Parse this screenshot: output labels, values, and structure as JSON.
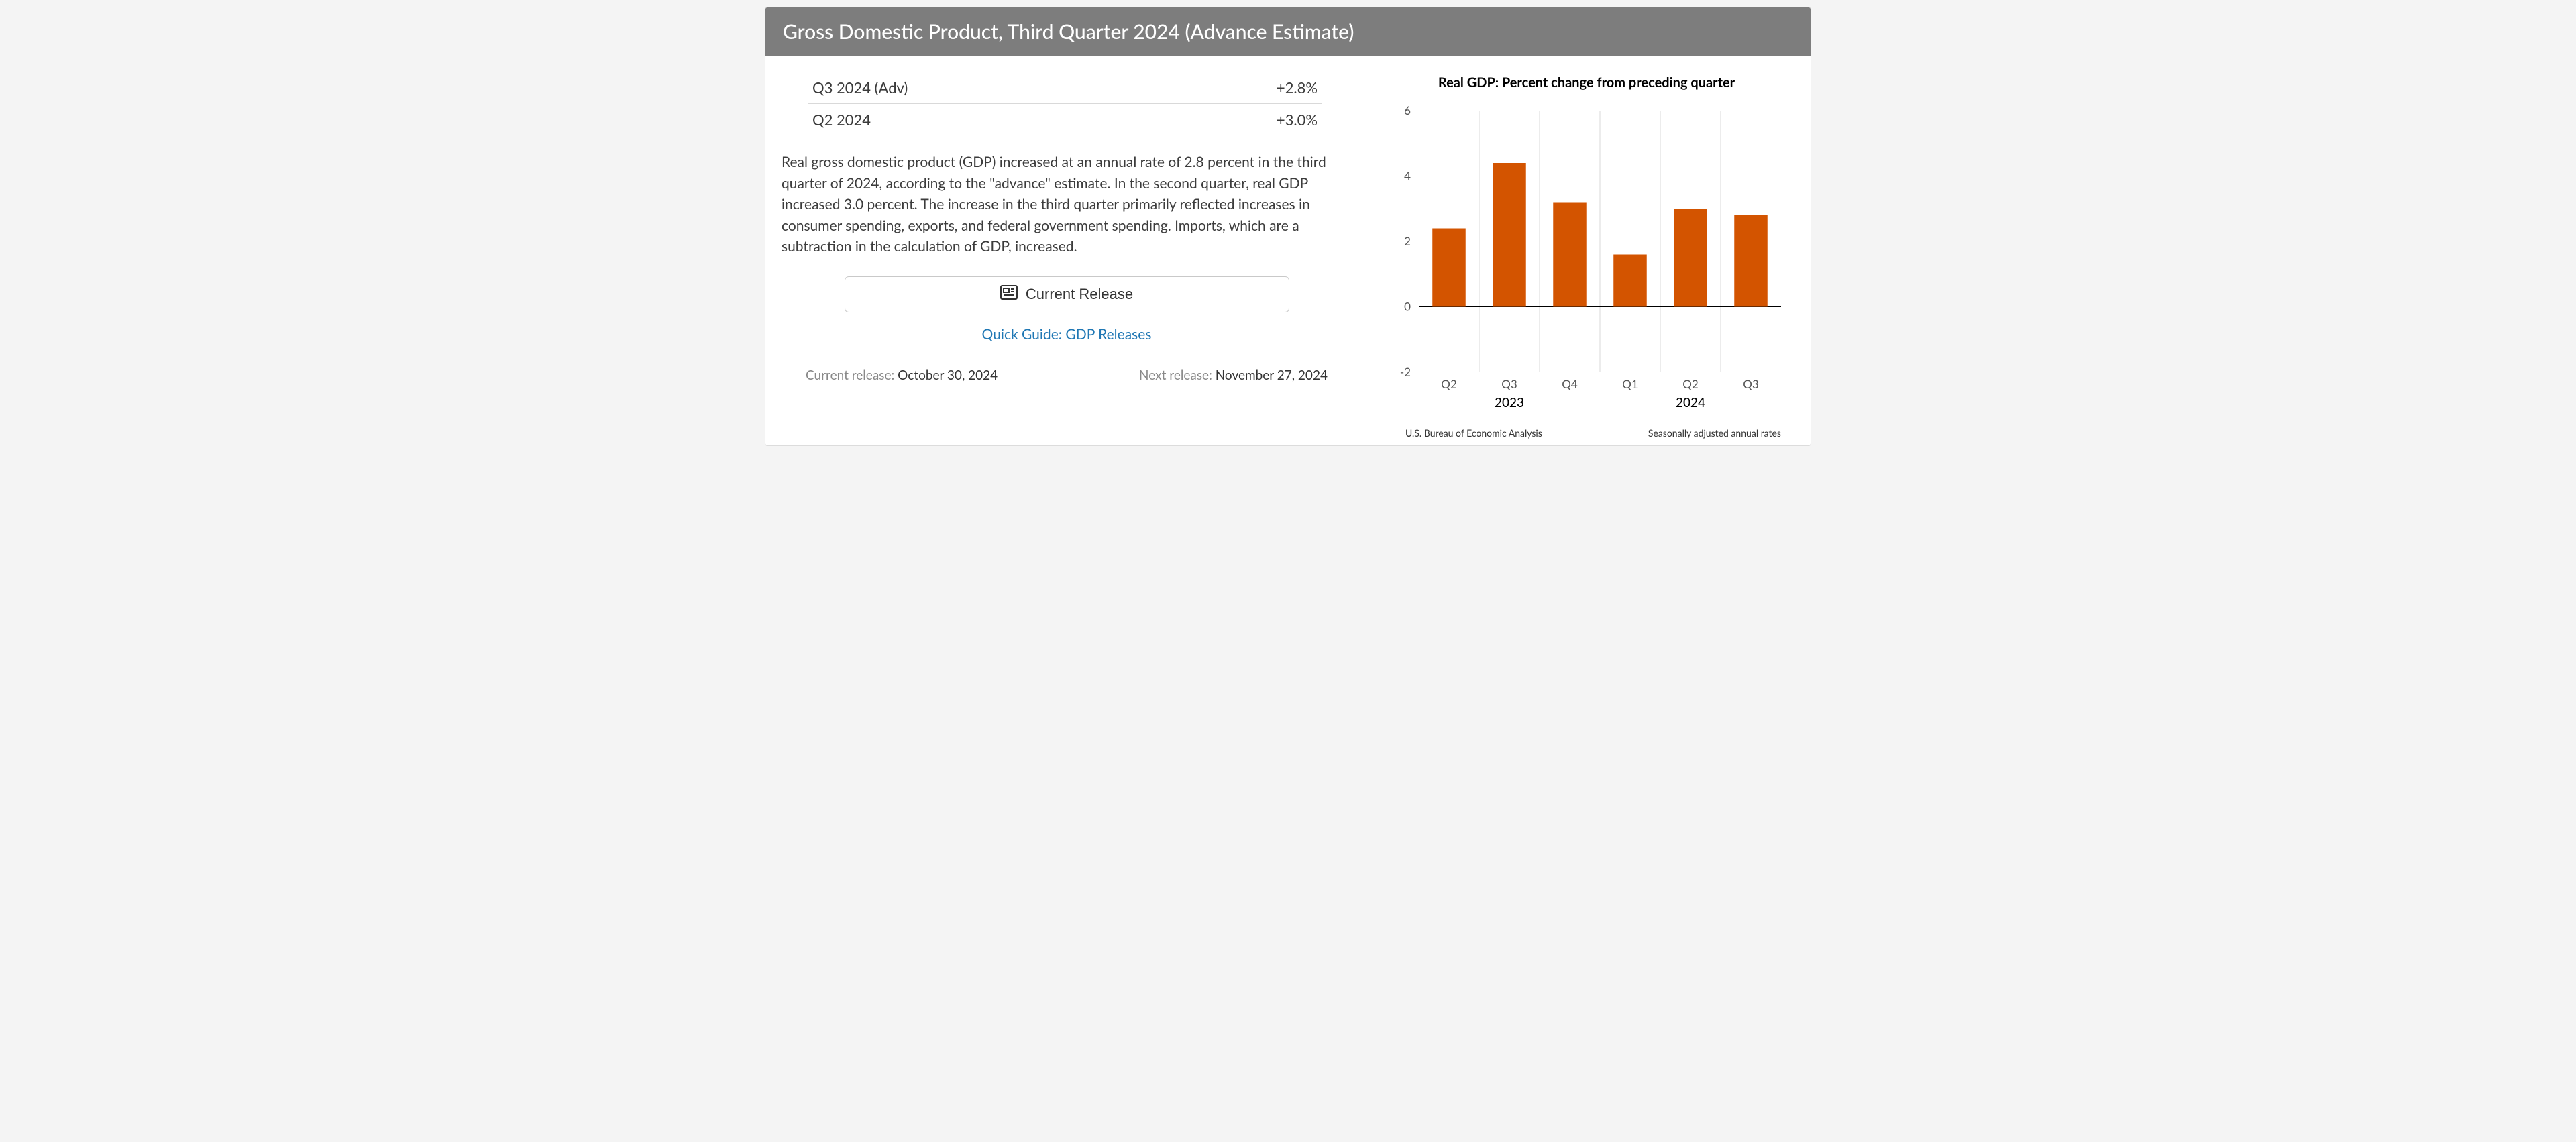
{
  "header": {
    "title": "Gross Domestic Product, Third Quarter 2024 (Advance Estimate)"
  },
  "stats": {
    "rows": [
      {
        "label": "Q3 2024 (Adv)",
        "value": "+2.8%"
      },
      {
        "label": "Q2 2024",
        "value": "+3.0%"
      }
    ]
  },
  "summary": "Real gross domestic product (GDP) increased at an annual rate of 2.8 percent in the third quarter of 2024, according to the \"advance\" estimate. In the second quarter, real GDP increased 3.0 percent. The increase in the third quarter primarily reflected increases in consumer spending, exports, and federal government spending. Imports, which are a subtraction in the calculation of GDP, increased.",
  "buttons": {
    "current_release": "Current Release",
    "quick_guide": "Quick Guide: GDP Releases"
  },
  "release_info": {
    "current_label": "Current release:",
    "current_value": "October 30, 2024",
    "next_label": "Next release:",
    "next_value": "November 27, 2024"
  },
  "chart": {
    "type": "bar",
    "title": "Real GDP:  Percent change from preceding quarter",
    "categories": [
      "Q2",
      "Q3",
      "Q4",
      "Q1",
      "Q2",
      "Q3"
    ],
    "year_groups": [
      {
        "label": "2023",
        "span": [
          0,
          2
        ]
      },
      {
        "label": "2024",
        "span": [
          3,
          5
        ]
      }
    ],
    "values": [
      2.4,
      4.4,
      3.2,
      1.6,
      3.0,
      2.8
    ],
    "bar_color": "#d35400",
    "grid_color": "#d9d9d9",
    "axis_text_color": "#555555",
    "year_text_color": "#000000",
    "background_color": "#ffffff",
    "ylim": [
      -2,
      6
    ],
    "yticks": [
      -2,
      0,
      2,
      4,
      6
    ],
    "bar_width_ratio": 0.55,
    "title_fontsize": 20,
    "tick_fontsize": 17,
    "year_fontsize": 19,
    "footer_left": "U.S. Bureau of Economic Analysis",
    "footer_right": "Seasonally adjusted annual rates"
  }
}
